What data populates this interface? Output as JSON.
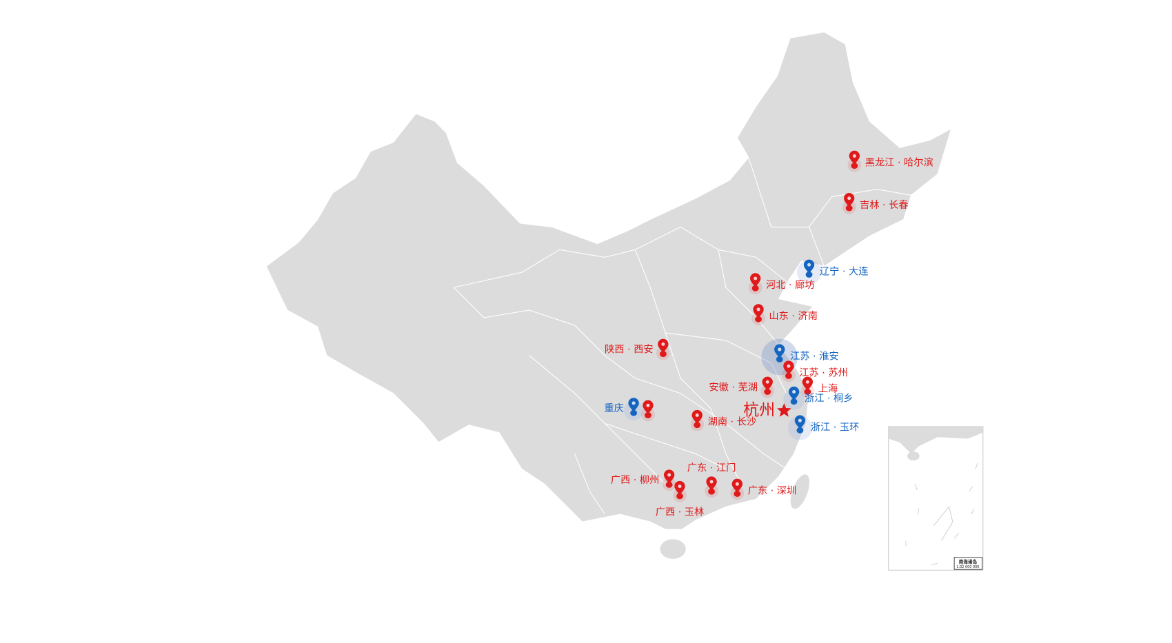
{
  "colors": {
    "red": "#e0191a",
    "blue": "#1565c0",
    "land": "#dcdcdc",
    "border": "#ffffff"
  },
  "center": {
    "label": "杭州",
    "icon": "star-icon"
  },
  "markers": [
    {
      "label": "黑龙江 · 哈尔滨",
      "type": "red"
    },
    {
      "label": "吉林 · 长春",
      "type": "red"
    },
    {
      "label": "辽宁 · 大连",
      "type": "blue"
    },
    {
      "label": "河北 · 廊坊",
      "type": "red"
    },
    {
      "label": "山东 · 济南",
      "type": "red"
    },
    {
      "label": "陕西 · 西安",
      "type": "red"
    },
    {
      "label": "江苏 · 淮安",
      "type": "blue"
    },
    {
      "label": "江苏 · 苏州",
      "type": "red"
    },
    {
      "label": "安徽 · 芜湖",
      "type": "red"
    },
    {
      "label": "上海",
      "type": "red"
    },
    {
      "label": "浙江 · 桐乡",
      "type": "blue"
    },
    {
      "label": "浙江 · 玉环",
      "type": "blue"
    },
    {
      "label": "重庆",
      "type": "blue"
    },
    {
      "label": "",
      "type": "red"
    },
    {
      "label": "湖南 · 长沙",
      "type": "red"
    },
    {
      "label": "广东 · 江门",
      "type": "red"
    },
    {
      "label": "广西 · 柳州",
      "type": "red"
    },
    {
      "label": "广西 · 玉林",
      "type": "red"
    },
    {
      "label": "广东 · 深圳",
      "type": "red"
    }
  ],
  "inset": {
    "title": "南海诸岛",
    "scale": "1:32 000 000"
  }
}
